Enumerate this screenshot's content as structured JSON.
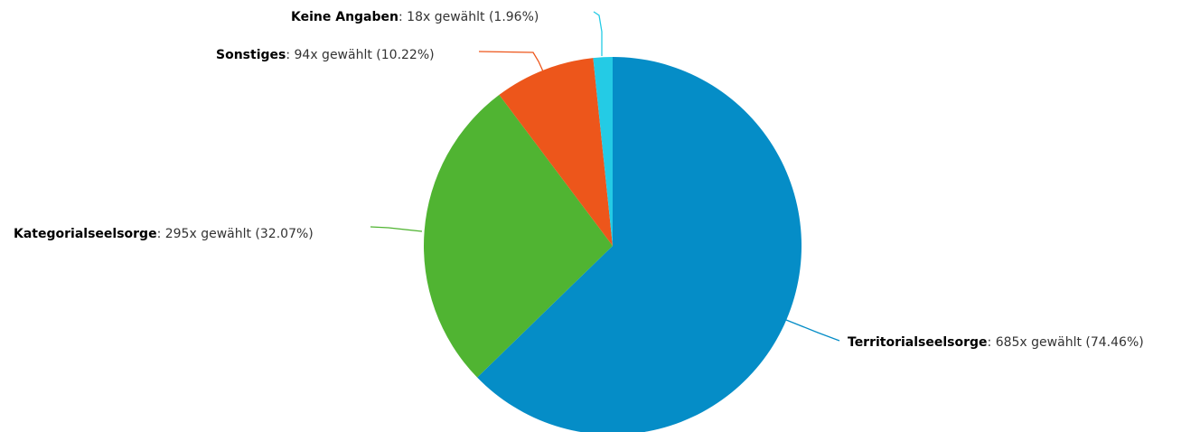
{
  "chart_data": {
    "type": "pie",
    "start_angle_deg": 0,
    "direction": "clockwise",
    "slices": [
      {
        "name": "Territorialseelsorge",
        "count": 685,
        "label_rest": ": 685x gewählt (74.46%)",
        "color": "#058dc7"
      },
      {
        "name": "Kategorialseelsorge",
        "count": 295,
        "label_rest": ": 295x gewählt (32.07%)",
        "color": "#50b432"
      },
      {
        "name": "Sonstiges",
        "count": 94,
        "label_rest": ": 94x gewählt (10.22%)",
        "color": "#ed561b"
      },
      {
        "name": "Keine Angaben",
        "count": 18,
        "label_rest": ": 18x gewählt (1.96%)",
        "color": "#24cbe5"
      }
    ]
  }
}
